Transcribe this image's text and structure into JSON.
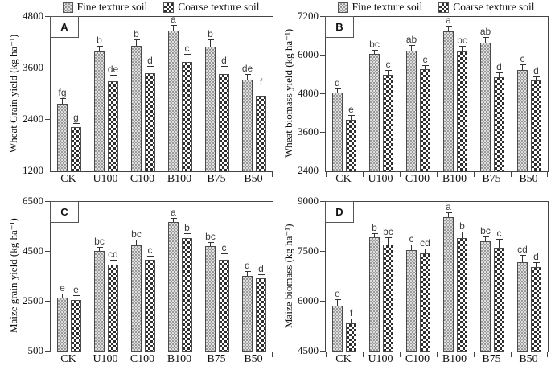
{
  "figure_title": "",
  "legend": {
    "items": [
      {
        "label": "Fine texture soil",
        "pattern": "fine"
      },
      {
        "label": "Coarse texture soil",
        "pattern": "coarse"
      }
    ]
  },
  "colors": {
    "fine_pattern_dark": "#9a9a9a",
    "fine_pattern_light": "#dedede",
    "coarse_pattern_dark": "#2e2e2e",
    "coarse_pattern_light": "#ffffff",
    "axis": "#444444",
    "text": "#111111",
    "sig_letter": "#3d3d3d"
  },
  "chart_data": [
    {
      "panel": "A",
      "type": "bar",
      "ylabel": "Wheat Grain yield (kg ha⁻¹)",
      "ylim": [
        1200,
        4800
      ],
      "yticks": [
        4800,
        3600,
        2400,
        1200
      ],
      "categories": [
        "CK",
        "U100",
        "C100",
        "B100",
        "B75",
        "B50"
      ],
      "legend_visible": true,
      "grid": false,
      "series": [
        {
          "name": "Fine texture soil",
          "pattern": "fine",
          "values": [
            2780,
            4000,
            4120,
            4480,
            4100,
            3330
          ],
          "errors": [
            110,
            110,
            130,
            120,
            150,
            120
          ],
          "letters": [
            "fg",
            "b",
            "b",
            "a",
            "b",
            "de"
          ]
        },
        {
          "name": "Coarse texture soil",
          "pattern": "coarse",
          "values": [
            2230,
            3300,
            3480,
            3750,
            3470,
            2960
          ],
          "errors": [
            70,
            130,
            150,
            170,
            160,
            160
          ],
          "letters": [
            "g",
            "de",
            "d",
            "c",
            "d",
            "f"
          ]
        }
      ]
    },
    {
      "panel": "B",
      "type": "bar",
      "ylabel": "Wheat biomass yield (kg ha⁻¹)",
      "ylim": [
        2400,
        7200
      ],
      "yticks": [
        7200,
        6000,
        4800,
        3600,
        2400
      ],
      "categories": [
        "CK",
        "U100",
        "C100",
        "B100",
        "B75",
        "B50"
      ],
      "legend_visible": true,
      "grid": false,
      "series": [
        {
          "name": "Fine texture soil",
          "pattern": "fine",
          "values": [
            4860,
            6060,
            6150,
            6760,
            6400,
            5550
          ],
          "errors": [
            100,
            100,
            140,
            150,
            160,
            150
          ],
          "letters": [
            "d",
            "bc",
            "ab",
            "a",
            "ab",
            "c"
          ]
        },
        {
          "name": "Coarse texture soil",
          "pattern": "coarse",
          "values": [
            3990,
            5390,
            5570,
            6130,
            5330,
            5230
          ],
          "errors": [
            120,
            120,
            110,
            140,
            120,
            110
          ],
          "letters": [
            "e",
            "c",
            "c",
            "bc",
            "d",
            "d"
          ]
        }
      ]
    },
    {
      "panel": "C",
      "type": "bar",
      "ylabel": "Maize grain yield (kg ha⁻¹)",
      "ylim": [
        500,
        6500
      ],
      "yticks": [
        6500,
        4500,
        2500,
        500
      ],
      "categories": [
        "CK",
        "U100",
        "C100",
        "B100",
        "B75",
        "B50"
      ],
      "legend_visible": false,
      "grid": false,
      "series": [
        {
          "name": "Fine texture soil",
          "pattern": "fine",
          "values": [
            2650,
            4530,
            4760,
            5700,
            4720,
            3520
          ],
          "errors": [
            100,
            120,
            180,
            130,
            120,
            170
          ],
          "letters": [
            "e",
            "bc",
            "bc",
            "a",
            "bc",
            "d"
          ]
        },
        {
          "name": "Coarse texture soil",
          "pattern": "coarse",
          "values": [
            2570,
            3990,
            4180,
            5060,
            4170,
            3430
          ],
          "errors": [
            150,
            170,
            120,
            150,
            220,
            100
          ],
          "letters": [
            "e",
            "cd",
            "c",
            "b",
            "c",
            "d"
          ]
        }
      ]
    },
    {
      "panel": "D",
      "type": "bar",
      "ylabel": "Maize biomass (kg ha⁻¹)",
      "ylim": [
        4500,
        9000
      ],
      "yticks": [
        9000,
        7500,
        6000,
        4500
      ],
      "categories": [
        "CK",
        "U100",
        "C100",
        "B100",
        "B75",
        "B50"
      ],
      "legend_visible": false,
      "grid": false,
      "series": [
        {
          "name": "Fine texture soil",
          "pattern": "fine",
          "values": [
            5870,
            7930,
            7550,
            8530,
            7810,
            7180
          ],
          "errors": [
            160,
            90,
            140,
            120,
            110,
            200
          ],
          "letters": [
            "e",
            "b",
            "c",
            "a",
            "bc",
            "cd"
          ]
        },
        {
          "name": "Coarse texture soil",
          "pattern": "coarse",
          "values": [
            5340,
            7720,
            7440,
            7920,
            7610,
            7050
          ],
          "errors": [
            110,
            200,
            120,
            170,
            230,
            130
          ],
          "letters": [
            "f",
            "bc",
            "cd",
            "b",
            "c",
            "d"
          ]
        }
      ]
    }
  ]
}
